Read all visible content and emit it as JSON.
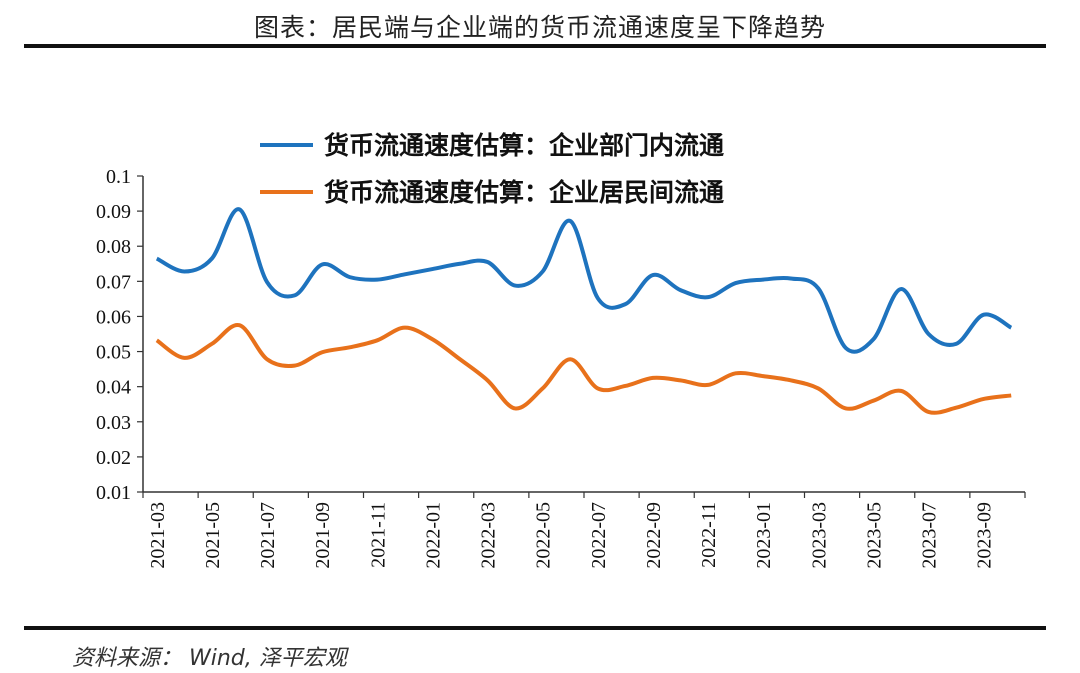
{
  "header": {
    "title": "图表：居民端与企业端的货币流通速度呈下降趋势"
  },
  "footer": {
    "source": "资料来源： Wind, 泽平宏观"
  },
  "colors": {
    "series1": "#1E73BE",
    "series2": "#E8711B",
    "axis": "#333333"
  },
  "chart_data": {
    "type": "line",
    "title": "",
    "xlabel": "",
    "ylabel": "",
    "ylim": [
      0.01,
      0.1
    ],
    "yticks": [
      "0.1",
      "0.09",
      "0.08",
      "0.07",
      "0.06",
      "0.05",
      "0.04",
      "0.03",
      "0.02",
      "0.01"
    ],
    "x": [
      "2021-03",
      "2021-04",
      "2021-05",
      "2021-06",
      "2021-07",
      "2021-08",
      "2021-09",
      "2021-10",
      "2021-11",
      "2021-12",
      "2022-01",
      "2022-02",
      "2022-03",
      "2022-04",
      "2022-05",
      "2022-06",
      "2022-07",
      "2022-08",
      "2022-09",
      "2022-10",
      "2022-11",
      "2022-12",
      "2023-01",
      "2023-02",
      "2023-03",
      "2023-04",
      "2023-05",
      "2023-06",
      "2023-07",
      "2023-08",
      "2023-09",
      "2023-10"
    ],
    "xtick_labels": [
      "2021-03",
      "2021-05",
      "2021-07",
      "2021-09",
      "2021-11",
      "2022-01",
      "2022-03",
      "2022-05",
      "2022-07",
      "2022-09",
      "2022-11",
      "2023-01",
      "2023-03",
      "2023-05",
      "2023-07",
      "2023-09"
    ],
    "series": [
      {
        "name": "货币流通速度估算：企业部门内流通",
        "values": [
          0.0765,
          0.0728,
          0.0765,
          0.0905,
          0.0698,
          0.066,
          0.0748,
          0.0712,
          0.0705,
          0.072,
          0.0735,
          0.075,
          0.0755,
          0.0688,
          0.0728,
          0.0872,
          0.0652,
          0.0635,
          0.0718,
          0.0675,
          0.0655,
          0.0695,
          0.0705,
          0.0708,
          0.068,
          0.051,
          0.0535,
          0.0678,
          0.055,
          0.0522,
          0.0605,
          0.0568
        ]
      },
      {
        "name": "货币流通速度估算：企业居民间流通",
        "values": [
          0.0532,
          0.0482,
          0.0522,
          0.0575,
          0.0478,
          0.046,
          0.0498,
          0.0512,
          0.0532,
          0.0568,
          0.0535,
          0.0478,
          0.0418,
          0.0338,
          0.0395,
          0.0478,
          0.0395,
          0.0402,
          0.0425,
          0.0418,
          0.0405,
          0.0438,
          0.043,
          0.0418,
          0.0395,
          0.0338,
          0.036,
          0.0388,
          0.0328,
          0.034,
          0.0365,
          0.0375
        ]
      }
    ]
  }
}
